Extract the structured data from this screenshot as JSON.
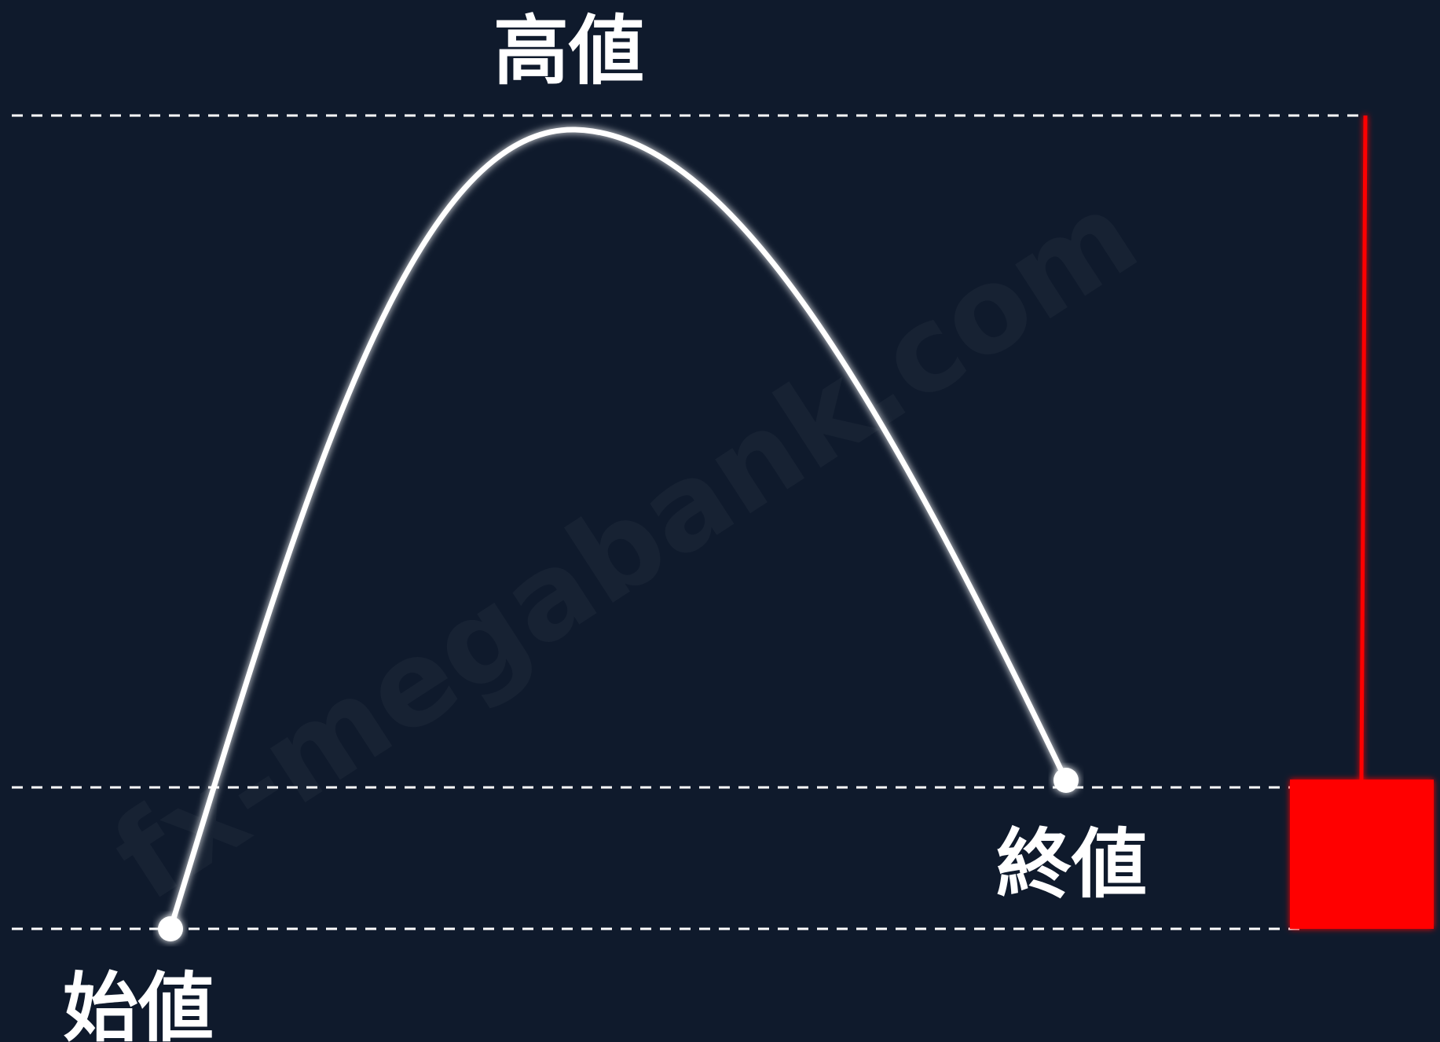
{
  "labels": {
    "high": "高値",
    "close": "終値",
    "open": "始値"
  },
  "watermark": "fx-megabank.com",
  "colors": {
    "background": "#0f1a2c",
    "price_path": "#ffffff",
    "guide_lines": "#ffffff",
    "candle": "#ff0000"
  }
}
